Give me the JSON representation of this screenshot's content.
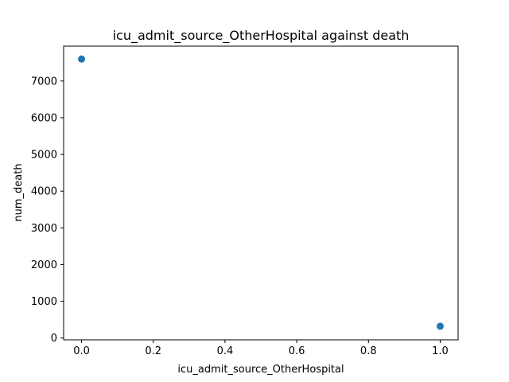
{
  "chart_data": {
    "type": "scatter",
    "title": "icu_admit_source_OtherHospital against death",
    "xlabel": "icu_admit_source_OtherHospital",
    "ylabel": "num_death",
    "x": [
      0.0,
      1.0
    ],
    "y": [
      7600,
      320
    ],
    "xlim": [
      -0.05,
      1.05
    ],
    "ylim": [
      -50,
      7950
    ],
    "xticks": [
      0.0,
      0.2,
      0.4,
      0.6,
      0.8,
      1.0
    ],
    "xtick_labels": [
      "0.0",
      "0.2",
      "0.4",
      "0.6",
      "0.8",
      "1.0"
    ],
    "yticks": [
      0,
      1000,
      2000,
      3000,
      4000,
      5000,
      6000,
      7000
    ],
    "ytick_labels": [
      "0",
      "1000",
      "2000",
      "3000",
      "4000",
      "5000",
      "6000",
      "7000"
    ],
    "grid": false,
    "marker_color": "#1f77b4"
  }
}
